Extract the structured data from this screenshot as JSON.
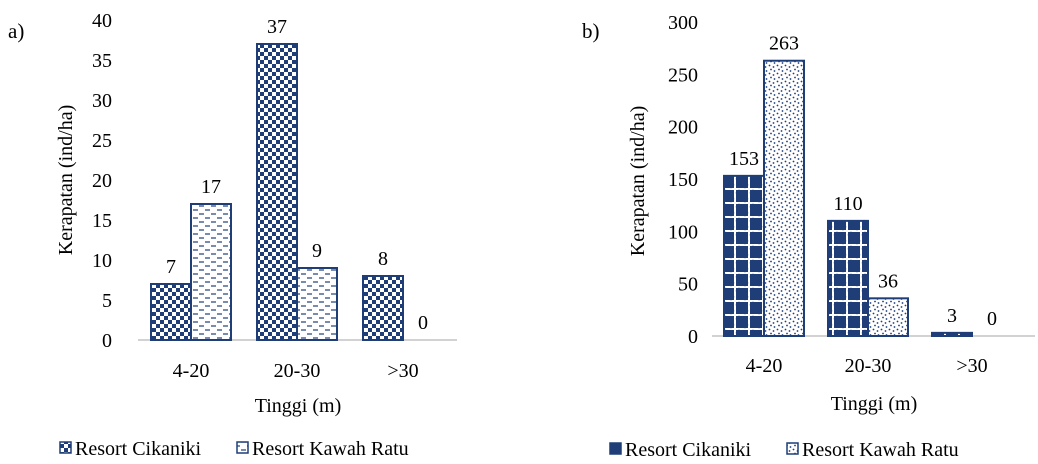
{
  "colors": {
    "navy": "#1f3e78",
    "white": "#ffffff",
    "axis": "#a6a6a6"
  },
  "chart_data": [
    {
      "type": "bar",
      "panel_label": "a)",
      "categories": [
        "4-20",
        "20-30",
        ">30"
      ],
      "series": [
        {
          "name": "Resort Cikaniki",
          "values": [
            7,
            37,
            8
          ],
          "pattern": "checker"
        },
        {
          "name": "Resort Kawah Ratu",
          "values": [
            17,
            9,
            0
          ],
          "pattern": "dashes"
        }
      ],
      "xlabel": "Tinggi (m)",
      "ylabel": "Kerapatan (ind/ha)",
      "ylim": [
        0,
        40
      ],
      "yticks": [
        "0",
        "5",
        "10",
        "15",
        "20",
        "25",
        "30",
        "35",
        "40"
      ],
      "grid": false,
      "legend": "bottom"
    },
    {
      "type": "bar",
      "panel_label": "b)",
      "categories": [
        "4-20",
        "20-30",
        ">30"
      ],
      "series": [
        {
          "name": "Resort Cikaniki",
          "values": [
            153,
            110,
            3
          ],
          "pattern": "dots"
        },
        {
          "name": "Resort Kawah Ratu",
          "values": [
            263,
            36,
            0
          ],
          "pattern": "speckle"
        }
      ],
      "xlabel": "Tinggi (m)",
      "ylabel": "Kerapatan (ind/ha)",
      "ylim": [
        0,
        300
      ],
      "yticks": [
        "0",
        "50",
        "100",
        "150",
        "200",
        "250",
        "300"
      ],
      "grid": false,
      "legend": "bottom"
    }
  ]
}
